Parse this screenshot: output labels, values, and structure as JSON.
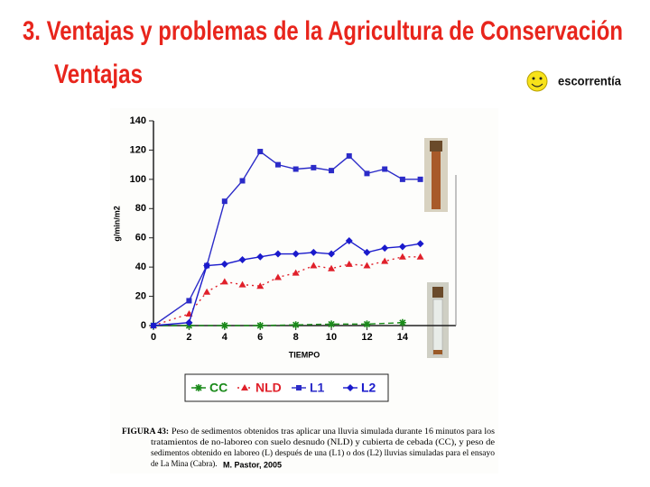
{
  "slide": {
    "title": "3.  Ventajas y problemas de la Agricultura de Conservación",
    "subtitle": "Ventajas",
    "note": "escorrentía"
  },
  "chart_data": {
    "type": "line",
    "y_label": "g/min/m2",
    "x_label": "TIEMPO",
    "xlim": [
      0,
      17
    ],
    "ylim": [
      0,
      140
    ],
    "xticks": [
      0,
      2,
      4,
      6,
      8,
      10,
      12,
      14
    ],
    "yticks": [
      0,
      20,
      40,
      60,
      80,
      100,
      120,
      140
    ],
    "grid": false,
    "series": [
      {
        "name": "CC",
        "color": "#1a8a1a",
        "line_style": "dashed",
        "marker": "asterisk",
        "x": [
          0,
          2,
          4,
          6,
          8,
          10,
          12,
          14
        ],
        "values": [
          0,
          0,
          0,
          0,
          0.5,
          1,
          1,
          2
        ]
      },
      {
        "name": "NLD",
        "color": "#e0202a",
        "line_style": "dotted",
        "marker": "triangle",
        "x": [
          0,
          2,
          3,
          4,
          5,
          6,
          7,
          8,
          9,
          10,
          11,
          12,
          13,
          14,
          15
        ],
        "values": [
          0,
          8,
          23,
          30,
          28,
          27,
          33,
          36,
          41,
          39,
          42,
          41,
          44,
          47,
          47
        ]
      },
      {
        "name": "L1",
        "color": "#2b2bc8",
        "line_style": "solid",
        "marker": "square",
        "x": [
          0,
          2,
          3,
          4,
          5,
          6,
          7,
          8,
          9,
          10,
          11,
          12,
          13,
          14,
          15
        ],
        "values": [
          0,
          17,
          41,
          85,
          99,
          119,
          110,
          107,
          108,
          106,
          116,
          104,
          107,
          100,
          100
        ]
      },
      {
        "name": "L2",
        "color": "#1a1acc",
        "line_style": "solid",
        "marker": "diamond",
        "x": [
          0,
          2,
          3,
          4,
          5,
          6,
          7,
          8,
          9,
          10,
          11,
          12,
          13,
          14,
          15
        ],
        "values": [
          0,
          2,
          41,
          42,
          45,
          47,
          49,
          49,
          50,
          49,
          58,
          50,
          53,
          54,
          56
        ]
      }
    ]
  },
  "caption": {
    "label": "FIGURA 43:",
    "lines": [
      "Peso de sedimentos obtenidos tras aplicar una lluvia simulada durante 16 minutos para los",
      "tratamientos de no-laboreo con suelo desnudo (NLD) y cubierta de cebada (CC), y peso de",
      "sedimentos obtenido en laboreo (L) después de una (L1) o dos (L2) lluvias simuladas para el ensayo",
      "de La Mina (Cabra)."
    ],
    "author": "M. Pastor, 2005"
  }
}
